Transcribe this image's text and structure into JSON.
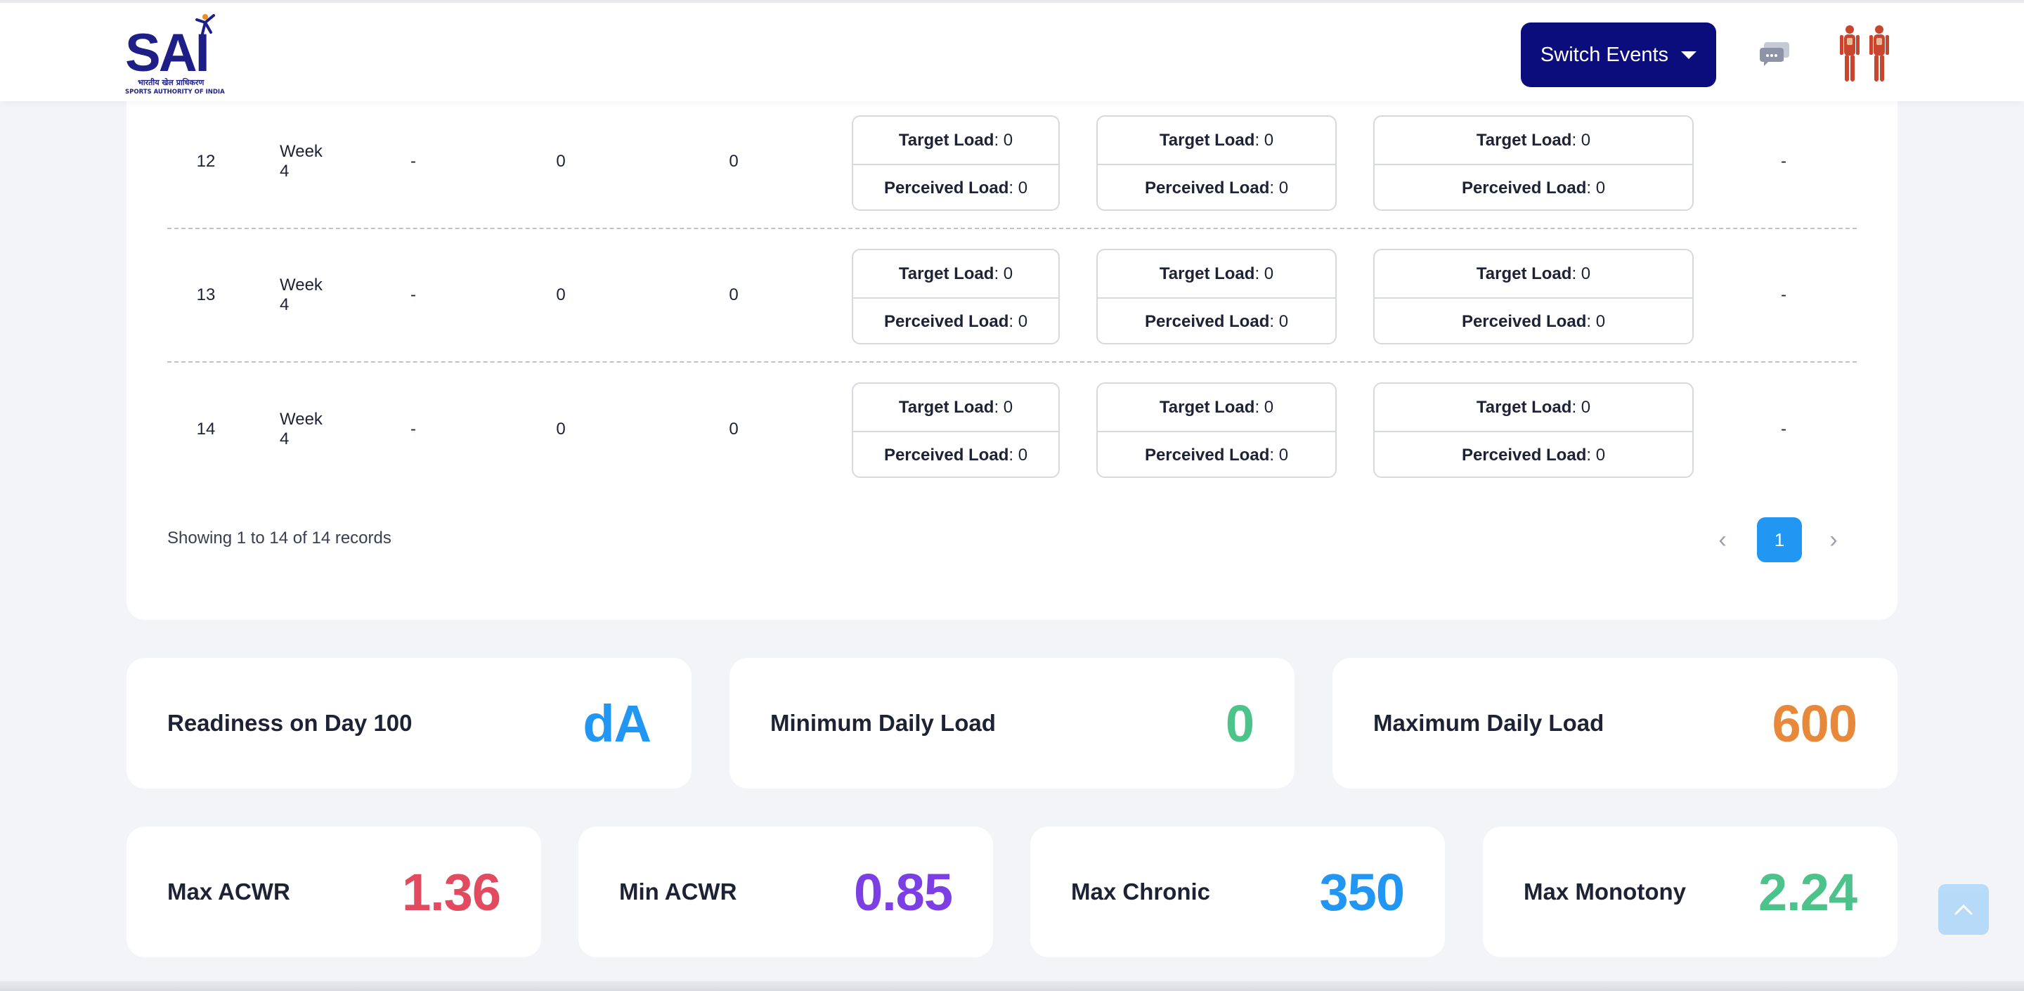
{
  "header": {
    "logo_text": "SAI",
    "logo_hindi": "भारतीय खेल प्राधिकरण",
    "logo_subtitle": "SPORTS AUTHORITY OF INDIA",
    "switch_events_label": "Switch Events"
  },
  "table": {
    "rows": [
      {
        "day": "12",
        "week": "Week 4",
        "c3": "-",
        "c4": "0",
        "c5": "0",
        "boxes": [
          {
            "tl": "Target Load",
            "tv": ": 0",
            "pl": "Perceived Load",
            "pv": ": 0"
          },
          {
            "tl": "Target Load",
            "tv": ": 0",
            "pl": "Perceived Load",
            "pv": ": 0"
          },
          {
            "tl": "Target Load",
            "tv": ": 0",
            "pl": "Perceived Load",
            "pv": ": 0"
          }
        ],
        "last": "-"
      },
      {
        "day": "13",
        "week": "Week 4",
        "c3": "-",
        "c4": "0",
        "c5": "0",
        "boxes": [
          {
            "tl": "Target Load",
            "tv": ": 0",
            "pl": "Perceived Load",
            "pv": ": 0"
          },
          {
            "tl": "Target Load",
            "tv": ": 0",
            "pl": "Perceived Load",
            "pv": ": 0"
          },
          {
            "tl": "Target Load",
            "tv": ": 0",
            "pl": "Perceived Load",
            "pv": ": 0"
          }
        ],
        "last": "-"
      },
      {
        "day": "14",
        "week": "Week 4",
        "c3": "-",
        "c4": "0",
        "c5": "0",
        "boxes": [
          {
            "tl": "Target Load",
            "tv": ": 0",
            "pl": "Perceived Load",
            "pv": ": 0"
          },
          {
            "tl": "Target Load",
            "tv": ": 0",
            "pl": "Perceived Load",
            "pv": ": 0"
          },
          {
            "tl": "Target Load",
            "tv": ": 0",
            "pl": "Perceived Load",
            "pv": ": 0"
          }
        ],
        "last": "-"
      }
    ]
  },
  "pagination": {
    "summary": "Showing 1 to 14 of 14 records",
    "prev": "‹",
    "current_page": "1",
    "next": "›"
  },
  "stats_top": [
    {
      "label": "Readiness on Day 100",
      "value": "dA",
      "color": "#2196f3"
    },
    {
      "label": "Minimum Daily Load",
      "value": "0",
      "color": "#4cc38a"
    },
    {
      "label": "Maximum Daily Load",
      "value": "600",
      "color": "#e8883a"
    }
  ],
  "stats_bottom": [
    {
      "label": "Max ACWR",
      "value": "1.36",
      "color": "#e24a5f"
    },
    {
      "label": "Min ACWR",
      "value": "0.85",
      "color": "#7b3fe4"
    },
    {
      "label": "Max Chronic",
      "value": "350",
      "color": "#2196f3"
    },
    {
      "label": "Max Monotony",
      "value": "2.24",
      "color": "#4cc38a"
    }
  ]
}
